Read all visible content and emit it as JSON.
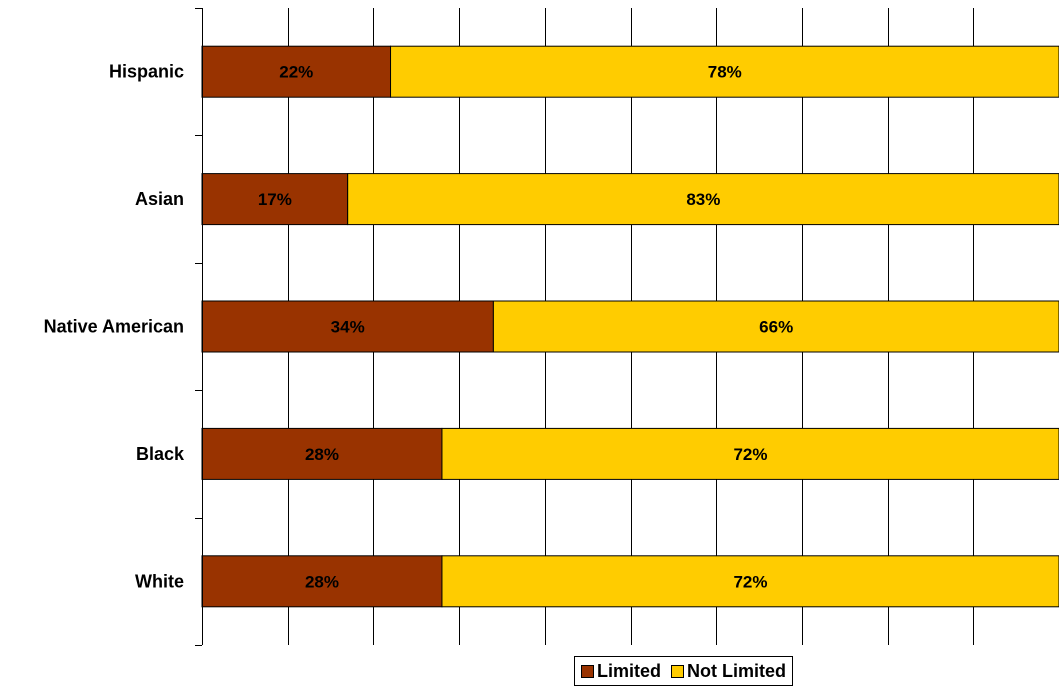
{
  "chart_data": {
    "type": "bar",
    "orientation": "horizontal",
    "stacked": true,
    "categories": [
      "Hispanic",
      "Asian",
      "Native American",
      "Black",
      "White"
    ],
    "series": [
      {
        "name": "Limited",
        "values": [
          22,
          17,
          34,
          28,
          28
        ],
        "labels": [
          "22%",
          "17%",
          "34%",
          "28%",
          "28%"
        ],
        "color": "#993300"
      },
      {
        "name": "Not Limited",
        "values": [
          78,
          83,
          66,
          72,
          72
        ],
        "labels": [
          "78%",
          "83%",
          "66%",
          "72%",
          "72%"
        ],
        "color": "#FFCC00"
      }
    ],
    "xlim": [
      0,
      100
    ],
    "x_gridlines": 10,
    "grid": true,
    "legend_position": "bottom"
  }
}
